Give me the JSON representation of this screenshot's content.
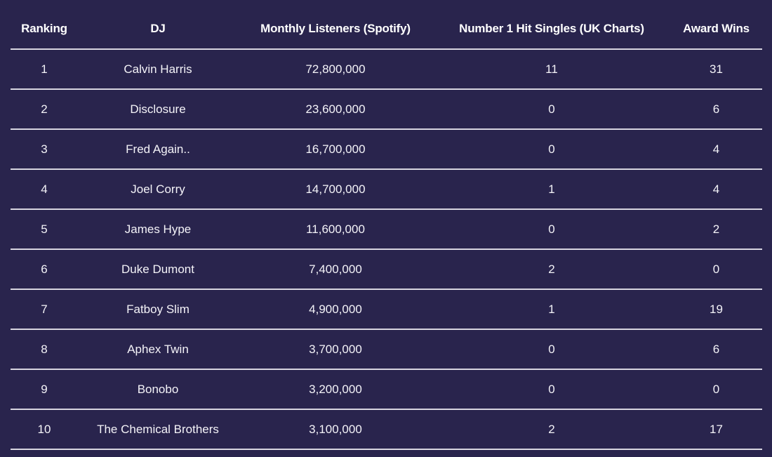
{
  "table": {
    "headers": [
      "Ranking",
      "DJ",
      "Monthly Listeners (Spotify)",
      "Number 1 Hit Singles (UK Charts)",
      "Award Wins"
    ],
    "rows": [
      [
        "1",
        "Calvin Harris",
        "72,800,000",
        "11",
        "31"
      ],
      [
        "2",
        "Disclosure",
        "23,600,000",
        "0",
        "6"
      ],
      [
        "3",
        "Fred Again..",
        "16,700,000",
        "0",
        "4"
      ],
      [
        "4",
        "Joel Corry",
        "14,700,000",
        "1",
        "4"
      ],
      [
        "5",
        "James Hype",
        "11,600,000",
        "0",
        "2"
      ],
      [
        "6",
        "Duke Dumont",
        "7,400,000",
        "2",
        "0"
      ],
      [
        "7",
        "Fatboy Slim",
        "4,900,000",
        "1",
        "19"
      ],
      [
        "8",
        "Aphex Twin",
        "3,700,000",
        "0",
        "6"
      ],
      [
        "9",
        "Bonobo",
        "3,200,000",
        "0",
        "0"
      ],
      [
        "10",
        "The Chemical Brothers",
        "3,100,000",
        "2",
        "17"
      ]
    ]
  },
  "colors": {
    "background": "#29244d",
    "text": "#ffffff",
    "rule": "#d8d6e0"
  }
}
